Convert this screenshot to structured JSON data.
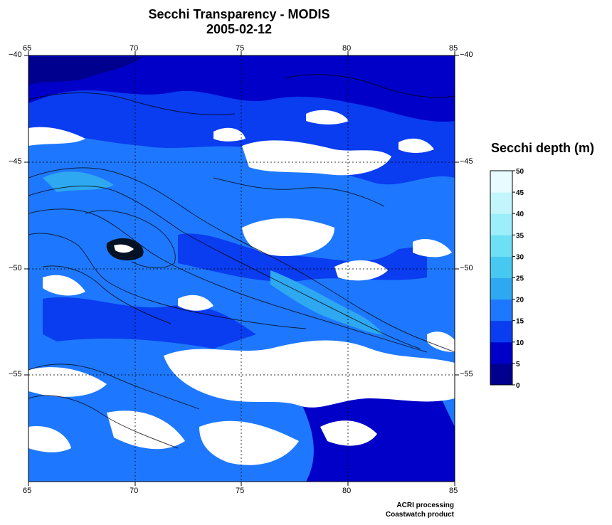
{
  "title": "Secchi Transparency - MODIS",
  "date": "2005-02-12",
  "lon_ticks": [
    "65",
    "70",
    "75",
    "80",
    "85"
  ],
  "lat_ticks": [
    "−40",
    "−45",
    "−50",
    "−55"
  ],
  "colorbar": {
    "title": "Secchi depth (m)",
    "ticks": [
      "0",
      "5",
      "10",
      "15",
      "20",
      "25",
      "30",
      "35",
      "40",
      "45",
      "50"
    ],
    "colors": [
      "#00008f",
      "#0000c8",
      "#0a3cf0",
      "#1e78ff",
      "#2ea8f0",
      "#46c8f0",
      "#6ee0f5",
      "#9beefa",
      "#c3f6fc",
      "#e6fcff"
    ]
  },
  "map": {
    "lon_range": [
      65,
      85
    ],
    "lat_range": [
      -60,
      -40
    ],
    "graticule_lon": [
      70,
      75,
      80
    ],
    "graticule_lat": [
      -45,
      -50,
      -55
    ],
    "land_island": "Kerguelen Islands",
    "cloud_color": "#ffffff"
  },
  "credits": [
    "ACRI processing",
    "Coastwatch product"
  ]
}
